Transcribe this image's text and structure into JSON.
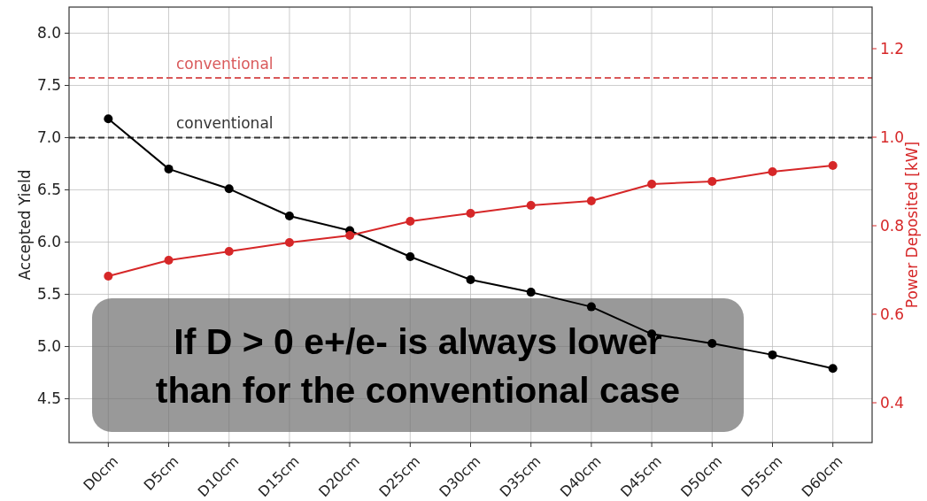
{
  "chart_data": {
    "type": "line",
    "ylabel": "Accepted Yield",
    "y2label": "Power Deposited [kW]",
    "categories": [
      "D0cm",
      "D5cm",
      "D10cm",
      "D15cm",
      "D20cm",
      "D25cm",
      "D30cm",
      "D35cm",
      "D40cm",
      "D45cm",
      "D50cm",
      "D55cm",
      "D60cm"
    ],
    "series": [
      {
        "color": "#000000",
        "values": [
          7.18,
          6.7,
          6.51,
          6.25,
          6.11,
          5.86,
          5.64,
          5.52,
          5.38,
          5.12,
          5.03,
          4.92,
          4.79
        ]
      },
      {
        "color": "#d62728",
        "axis": "y2",
        "values": [
          0.686,
          0.722,
          0.742,
          0.762,
          0.778,
          0.81,
          0.828,
          0.846,
          0.856,
          0.894,
          0.9,
          0.922,
          0.936
        ]
      }
    ],
    "ylim": [
      4.08,
      8.25
    ],
    "yticks": [
      4.5,
      {
        "value": 5,
        "label": "5.0"
      },
      5.5,
      {
        "value": 6,
        "label": "6.0"
      },
      6.5,
      {
        "value": 7,
        "label": "7.0"
      },
      7.5,
      {
        "value": 8,
        "label": "8.0"
      }
    ],
    "y2lim": [
      0.31,
      1.294
    ],
    "y2ticks": [
      0.4,
      0.6,
      0.8,
      {
        "value": 1,
        "label": "1.0"
      },
      1.2
    ],
    "ref_lines": [
      {
        "axis": "y",
        "value": 7.0,
        "label": "conventional",
        "color": "#333333",
        "line_style": "dashed"
      },
      {
        "axis": "y2",
        "value": 1.134,
        "label": "conventional",
        "color": "#d9595a",
        "line_style": "dashed"
      }
    ],
    "annotations": [
      "If D > 0 e+/e- is always lower\nthan for the conventional case"
    ],
    "grid": true,
    "marker": "circle",
    "line_style": "solid"
  }
}
